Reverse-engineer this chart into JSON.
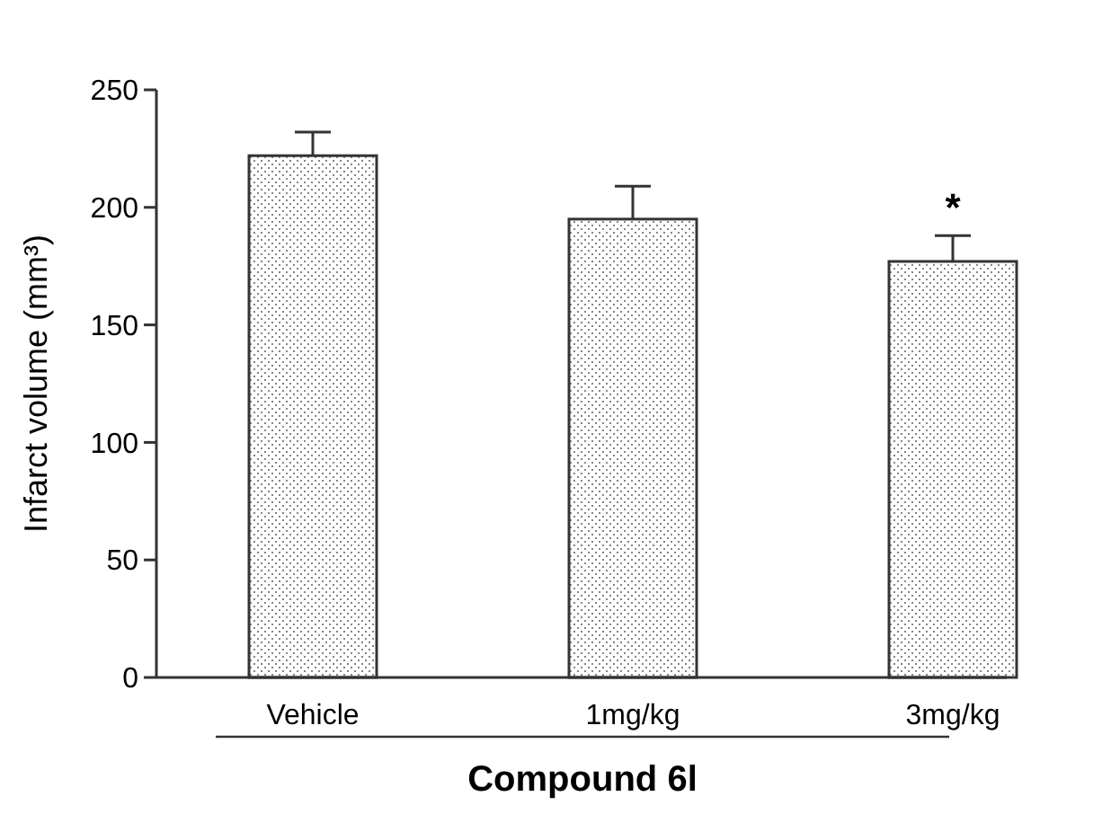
{
  "chart_data": {
    "type": "bar",
    "xlabel": "Compound 6l",
    "ylabel": "Infarct volume (mm³)",
    "categories": [
      "Vehicle",
      "1mg/kg",
      "3mg/kg"
    ],
    "values": [
      222,
      195,
      177
    ],
    "errors": [
      [
        222,
        232
      ],
      [
        195,
        209
      ],
      [
        177,
        188
      ]
    ],
    "color": "#333333",
    "ylim": [
      0,
      250
    ],
    "yticks": [
      0,
      50,
      100,
      150,
      200,
      250
    ],
    "annotations": [
      {
        "text": "*",
        "x": "3mg/kg",
        "y": 188
      }
    ],
    "grid": false
  }
}
